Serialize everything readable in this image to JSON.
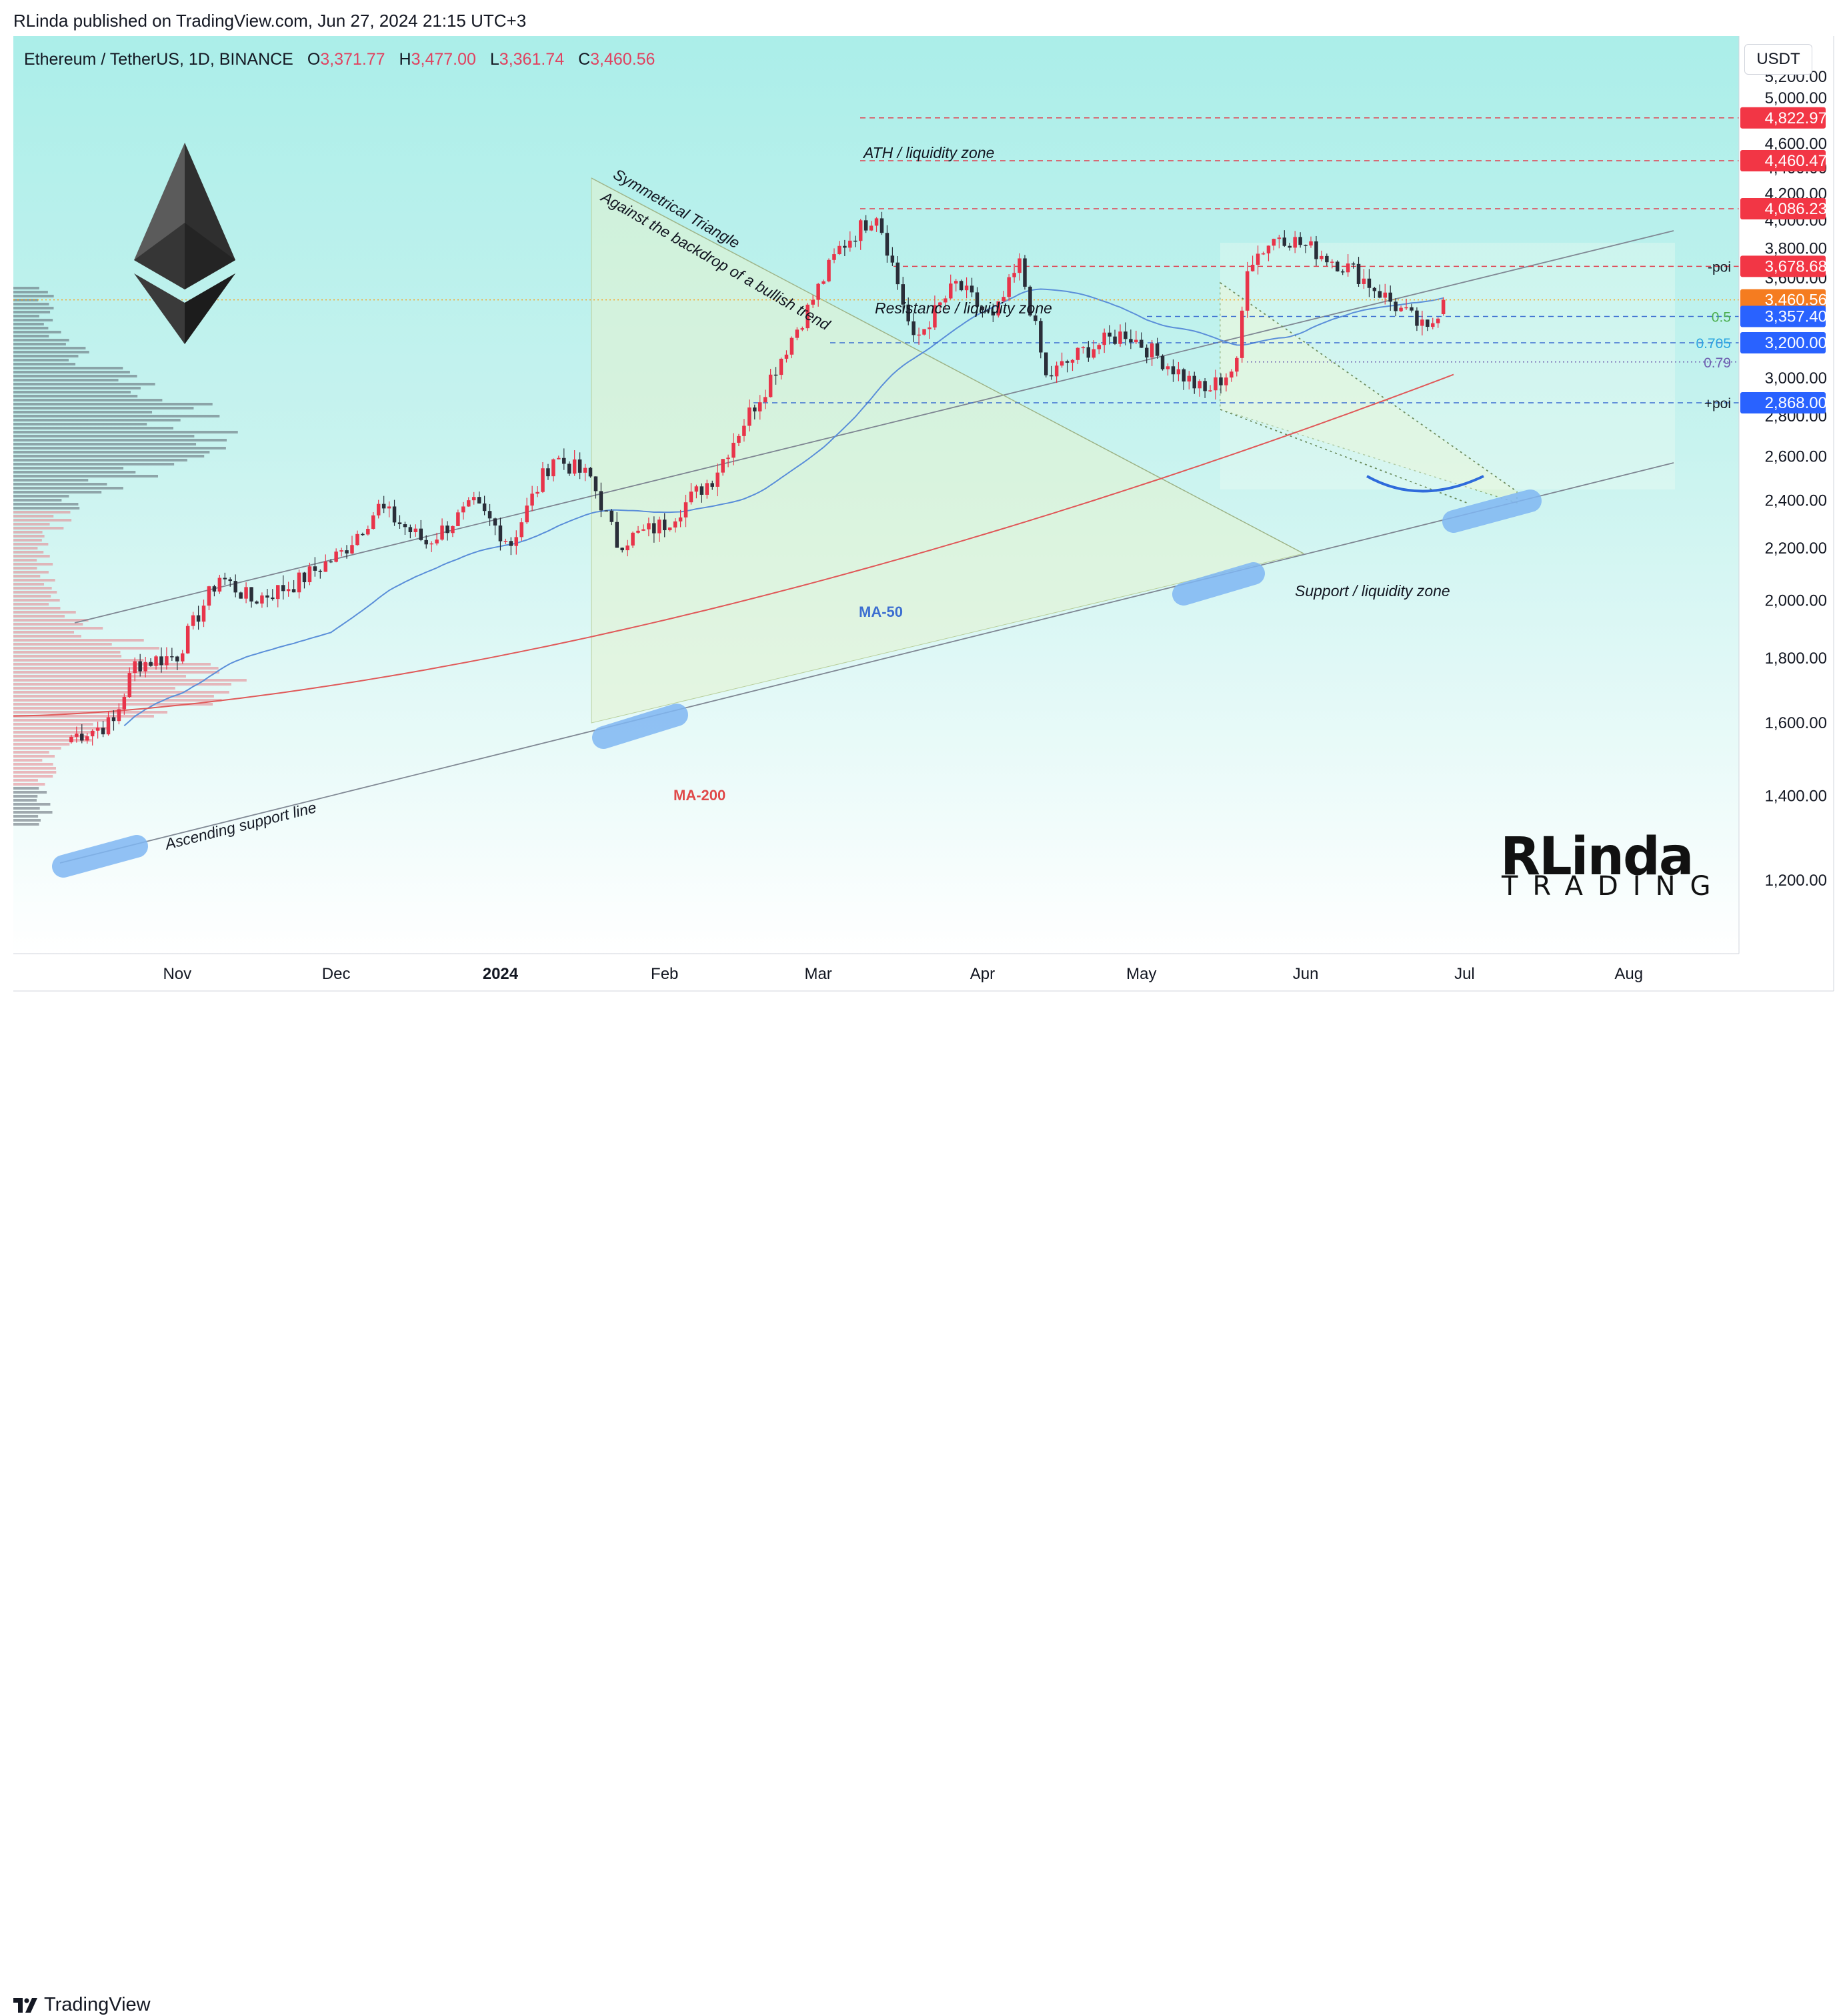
{
  "header": {
    "published": "RLinda published on TradingView.com, Jun 27, 2024 21:15 UTC+3"
  },
  "footer": {
    "brand": "TradingView"
  },
  "legend": {
    "symbol": "Ethereum / TetherUS, 1D, BINANCE",
    "open_label": "O",
    "open": "3,371.77",
    "high_label": "H",
    "high": "3,477.00",
    "low_label": "L",
    "low": "3,361.74",
    "close_label": "C",
    "close": "3,460.56"
  },
  "currency_button": "USDT",
  "watermark": {
    "main": "RLinda",
    "sub": "TRADING"
  },
  "colors": {
    "bg_top": "#aeeeea",
    "bg_bottom": "#ffffff",
    "candle_up": "#e8344a",
    "candle_down": "#2a2e39",
    "ma50": "#5b8fd9",
    "ma200": "#e05a5a",
    "level_red": "#e0404f",
    "level_blue": "#3d6fd1",
    "blob": "#7fb6f2"
  },
  "chart_data": {
    "type": "candlestick",
    "y_scale": "log",
    "ylim": [
      1050,
      5600
    ],
    "y_ticks": [
      "5,200.00",
      "5,000.00",
      "4,600.00",
      "4,400.00",
      "4,200.00",
      "4,000.00",
      "3,800.00",
      "3,600.00",
      "3,000.00",
      "2,800.00",
      "2,600.00",
      "2,400.00",
      "2,200.00",
      "2,000.00",
      "1,800.00",
      "1,600.00",
      "1,400.00",
      "1,200.00"
    ],
    "x_ticks": [
      "Nov",
      "Dec",
      "2024",
      "Feb",
      "Mar",
      "Apr",
      "May",
      "Jun",
      "Jul",
      "Aug"
    ],
    "price_tags": [
      {
        "label": "4,822.97",
        "value": 4822.97,
        "color": "#f23645"
      },
      {
        "label": "4,460.47",
        "value": 4460.47,
        "color": "#f23645"
      },
      {
        "label": "4,086.23",
        "value": 4086.23,
        "color": "#f23645"
      },
      {
        "label": "3,678.68",
        "value": 3678.68,
        "color": "#f23645"
      },
      {
        "label": "3,460.56",
        "value": 3460.56,
        "color": "#f57c20"
      },
      {
        "label": "3,357.40",
        "value": 3357.4,
        "color": "#2962ff"
      },
      {
        "label": "3,200.00",
        "value": 3200,
        "color": "#2962ff"
      },
      {
        "label": "2,868.00",
        "value": 2868,
        "color": "#2962ff"
      }
    ],
    "level_markers": [
      {
        "label": "-poi",
        "value": 3678.68
      },
      {
        "label": "0.5",
        "value": 3357.4
      },
      {
        "label": "0.705",
        "value": 3200
      },
      {
        "label": "0.79",
        "value": 3090
      },
      {
        "label": "+poi",
        "value": 2868
      }
    ],
    "annotations": [
      "ATH / liquidity zone",
      "Resistance / liquidity zone",
      "Support / liquidity zone",
      "Symmetrical Triangle",
      "Against the backdrop of a bullish trend",
      "Ascending support line",
      "MA-50",
      "MA-200"
    ],
    "price_path": [
      [
        "2023-10-12",
        1560
      ],
      [
        "2023-10-20",
        1600
      ],
      [
        "2023-10-24",
        1780
      ],
      [
        "2023-11-01",
        1810
      ],
      [
        "2023-11-09",
        2090
      ],
      [
        "2023-11-15",
        2000
      ],
      [
        "2023-11-23",
        2060
      ],
      [
        "2023-12-02",
        2180
      ],
      [
        "2023-12-09",
        2370
      ],
      [
        "2023-12-18",
        2220
      ],
      [
        "2023-12-27",
        2380
      ],
      [
        "2024-01-03",
        2220
      ],
      [
        "2024-01-11",
        2600
      ],
      [
        "2024-01-18",
        2500
      ],
      [
        "2024-01-23",
        2220
      ],
      [
        "2024-02-01",
        2300
      ],
      [
        "2024-02-10",
        2500
      ],
      [
        "2024-02-20",
        2950
      ],
      [
        "2024-02-28",
        3400
      ],
      [
        "2024-03-05",
        3800
      ],
      [
        "2024-03-12",
        4060
      ],
      [
        "2024-03-19",
        3200
      ],
      [
        "2024-03-27",
        3560
      ],
      [
        "2024-04-03",
        3330
      ],
      [
        "2024-04-08",
        3690
      ],
      [
        "2024-04-13",
        3000
      ],
      [
        "2024-04-20",
        3150
      ],
      [
        "2024-04-28",
        3260
      ],
      [
        "2024-05-05",
        3100
      ],
      [
        "2024-05-13",
        2920
      ],
      [
        "2024-05-19",
        3070
      ],
      [
        "2024-05-21",
        3700
      ],
      [
        "2024-05-27",
        3900
      ],
      [
        "2024-06-03",
        3780
      ],
      [
        "2024-06-10",
        3650
      ],
      [
        "2024-06-17",
        3450
      ],
      [
        "2024-06-24",
        3260
      ],
      [
        "2024-06-27",
        3460
      ]
    ]
  }
}
